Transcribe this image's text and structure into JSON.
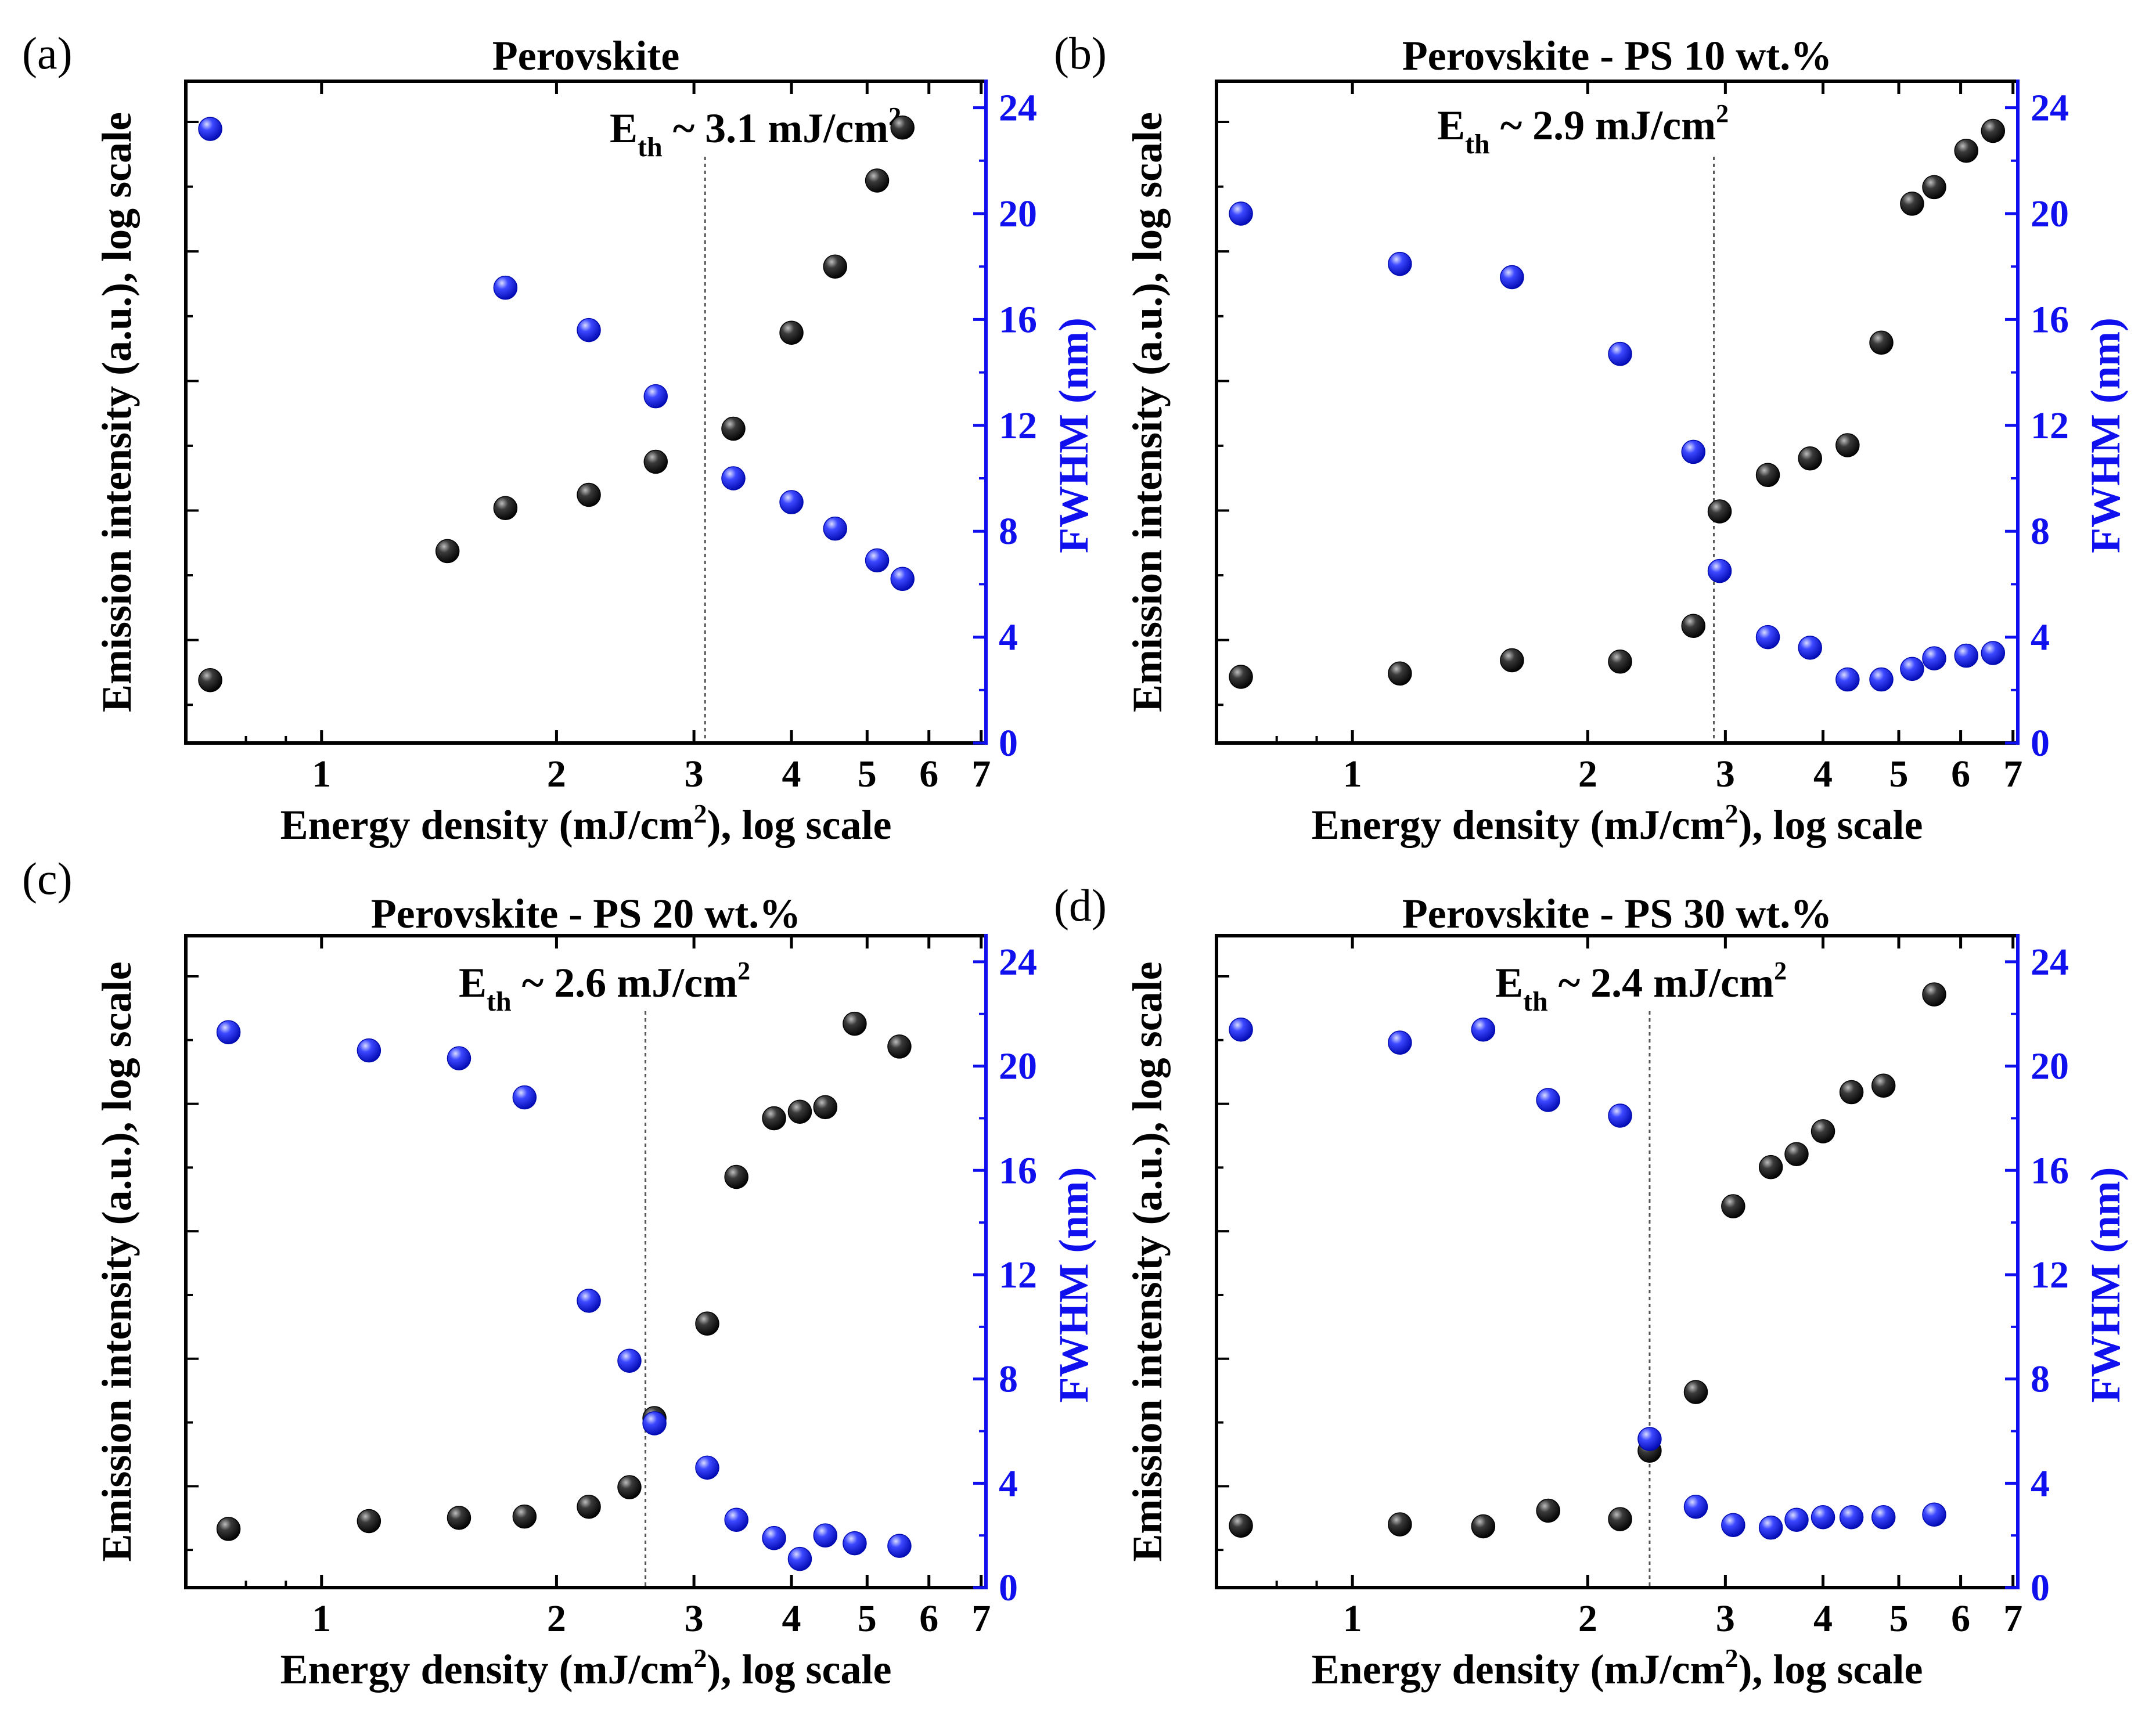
{
  "chart_data": [
    {
      "type": "scatter",
      "panel_label": "(a)",
      "title": "Perovskite",
      "threshold": 3.1,
      "annotation": {
        "prefix": "E",
        "sub": "th",
        "text": " ~ 3.1 mJ/cm",
        "sup": "2"
      },
      "xlabel": {
        "pre": "Energy density (mJ/cm",
        "sup": "2",
        "post": "), log scale"
      },
      "ylabel_left": "Emission intensity (a.u.), log scale",
      "ylabel_right": "FWHM (nm)",
      "x_ticks": [
        "1",
        "2",
        "3",
        "4",
        "5",
        "6",
        "7"
      ],
      "y2_ticks": [
        "0",
        "4",
        "8",
        "12",
        "16",
        "20",
        "24"
      ],
      "xlim": [
        0.67,
        7.1
      ],
      "y2lim": [
        0,
        25
      ],
      "y1lim": [
        0,
        1
      ],
      "series": [
        {
          "name": "Emission intensity",
          "color": "#000000",
          "x": [
            0.72,
            1.45,
            1.72,
            2.2,
            2.68,
            3.37,
            4.0,
            4.55,
            5.15,
            5.55
          ],
          "y": [
            0.095,
            0.29,
            0.355,
            0.375,
            0.425,
            0.475,
            0.62,
            0.72,
            0.85,
            0.93
          ]
        },
        {
          "name": "FWHM",
          "color": "#1010ee",
          "x": [
            0.72,
            1.72,
            2.2,
            2.68,
            3.37,
            4.0,
            4.55,
            5.15,
            5.55
          ],
          "y": [
            23.2,
            17.2,
            15.6,
            13.1,
            10.0,
            9.1,
            8.1,
            6.9,
            6.2
          ]
        }
      ]
    },
    {
      "type": "scatter",
      "panel_label": "(b)",
      "title": "Perovskite - PS 10 wt.%",
      "threshold": 2.9,
      "annotation": {
        "prefix": "E",
        "sub": "th",
        "text": " ~ 2.9 mJ/cm",
        "sup": "2"
      },
      "xlabel": {
        "pre": "Energy density (mJ/cm",
        "sup": "2",
        "post": "), log scale"
      },
      "ylabel_left": "Emission intensity (a.u.), log scale",
      "ylabel_right": "FWHM (nm)",
      "x_ticks": [
        "1",
        "2",
        "3",
        "4",
        "5",
        "6",
        "7"
      ],
      "y2_ticks": [
        "0",
        "4",
        "8",
        "12",
        "16",
        "20",
        "24"
      ],
      "xlim": [
        0.67,
        7.1
      ],
      "y2lim": [
        0,
        25
      ],
      "y1lim": [
        0,
        1
      ],
      "series": [
        {
          "name": "Emission intensity",
          "color": "#000000",
          "x": [
            0.72,
            1.15,
            1.6,
            2.2,
            2.73,
            2.95,
            3.4,
            3.85,
            4.3,
            4.75,
            5.2,
            5.55,
            6.1,
            6.6
          ],
          "y": [
            0.1,
            0.105,
            0.125,
            0.123,
            0.177,
            0.35,
            0.405,
            0.43,
            0.45,
            0.605,
            0.815,
            0.84,
            0.895,
            0.925
          ]
        },
        {
          "name": "FWHM",
          "color": "#1010ee",
          "x": [
            0.72,
            1.15,
            1.6,
            2.2,
            2.73,
            2.95,
            3.4,
            3.85,
            4.3,
            4.75,
            5.2,
            5.55,
            6.1,
            6.6
          ],
          "y": [
            20.0,
            18.1,
            17.6,
            14.7,
            11.0,
            6.5,
            4.0,
            3.6,
            2.4,
            2.4,
            2.8,
            3.2,
            3.3,
            3.4
          ]
        }
      ]
    },
    {
      "type": "scatter",
      "panel_label": "(c)",
      "title": "Perovskite - PS 20 wt.%",
      "threshold": 2.6,
      "annotation": {
        "prefix": "E",
        "sub": "th",
        "text": " ~ 2.6 mJ/cm",
        "sup": "2"
      },
      "xlabel": {
        "pre": "Energy density (mJ/cm",
        "sup": "2",
        "post": "), log scale"
      },
      "ylabel_left": "Emission intensity (a.u.), log scale",
      "ylabel_right": "FWHM (nm)",
      "x_ticks": [
        "1",
        "2",
        "3",
        "4",
        "5",
        "6",
        "7"
      ],
      "y2_ticks": [
        "0",
        "4",
        "8",
        "12",
        "16",
        "20",
        "24"
      ],
      "xlim": [
        0.67,
        7.1
      ],
      "y2lim": [
        0,
        25
      ],
      "y1lim": [
        0,
        1
      ],
      "series": [
        {
          "name": "Emission intensity",
          "color": "#000000",
          "x": [
            0.76,
            1.15,
            1.5,
            1.82,
            2.2,
            2.48,
            2.67,
            3.12,
            3.4,
            3.8,
            4.1,
            4.42,
            4.82,
            5.5
          ],
          "y": [
            0.09,
            0.102,
            0.107,
            0.109,
            0.124,
            0.154,
            0.26,
            0.405,
            0.63,
            0.72,
            0.73,
            0.737,
            0.865,
            0.83
          ]
        },
        {
          "name": "FWHM",
          "color": "#1010ee",
          "x": [
            0.76,
            1.15,
            1.5,
            1.82,
            2.2,
            2.48,
            2.67,
            3.12,
            3.4,
            3.8,
            4.1,
            4.42,
            4.82,
            5.5
          ],
          "y": [
            21.3,
            20.6,
            20.3,
            18.8,
            11.0,
            8.7,
            6.3,
            4.6,
            2.6,
            1.9,
            1.1,
            2.0,
            1.7,
            1.6
          ]
        }
      ]
    },
    {
      "type": "scatter",
      "panel_label": "(d)",
      "title": "Perovskite - PS 30 wt.%",
      "threshold": 2.4,
      "annotation": {
        "prefix": "E",
        "sub": "th",
        "text": " ~ 2.4 mJ/cm",
        "sup": "2"
      },
      "xlabel": {
        "pre": "Energy density (mJ/cm",
        "sup": "2",
        "post": "), log scale"
      },
      "ylabel_left": "Emission intensity (a.u.), log scale",
      "ylabel_right": "FWHM (nm)",
      "x_ticks": [
        "1",
        "2",
        "3",
        "4",
        "5",
        "6",
        "7"
      ],
      "y2_ticks": [
        "0",
        "4",
        "8",
        "12",
        "16",
        "20",
        "24"
      ],
      "xlim": [
        0.67,
        7.1
      ],
      "y2lim": [
        0,
        25
      ],
      "y1lim": [
        0,
        1
      ],
      "series": [
        {
          "name": "Emission intensity",
          "color": "#000000",
          "x": [
            0.72,
            1.15,
            1.47,
            1.78,
            2.2,
            2.4,
            2.75,
            3.07,
            3.43,
            3.7,
            4.0,
            4.35,
            4.78,
            5.55
          ],
          "y": [
            0.095,
            0.097,
            0.094,
            0.118,
            0.105,
            0.21,
            0.3,
            0.585,
            0.645,
            0.665,
            0.7,
            0.76,
            0.77,
            0.91
          ]
        },
        {
          "name": "FWHM",
          "color": "#1010ee",
          "x": [
            0.72,
            1.15,
            1.47,
            1.78,
            2.2,
            2.4,
            2.75,
            3.07,
            3.43,
            3.7,
            4.0,
            4.35,
            4.78,
            5.55
          ],
          "y": [
            21.4,
            20.9,
            21.4,
            18.7,
            18.1,
            5.7,
            3.1,
            2.4,
            2.3,
            2.6,
            2.7,
            2.7,
            2.7,
            2.8
          ]
        }
      ]
    }
  ]
}
